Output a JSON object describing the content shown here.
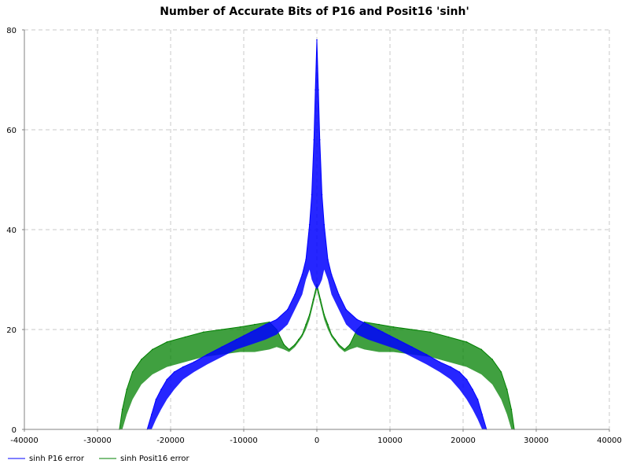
{
  "chart_data": {
    "type": "line",
    "title": "Number of Accurate Bits of P16 and Posit16 'sinh'",
    "xlabel": "",
    "ylabel": "",
    "xlim": [
      -40000,
      40000
    ],
    "ylim": [
      0,
      80
    ],
    "x_ticks": [
      -40000,
      -30000,
      -20000,
      -10000,
      0,
      10000,
      20000,
      30000,
      40000
    ],
    "y_ticks": [
      0,
      20,
      40,
      60,
      80
    ],
    "x_tick_labels": [
      "-40000",
      "-30000",
      "-20000",
      "-10000",
      "0",
      "10000",
      "20000",
      "30000",
      "40000"
    ],
    "y_tick_labels": [
      "0",
      "20",
      "40",
      "60",
      "80"
    ],
    "grid": true,
    "legend_position": "bottom-left",
    "series": [
      {
        "name": "sinh P16 error",
        "color": "#0000ff",
        "x": [
          -23200,
          -22600,
          -22000,
          -21300,
          -20500,
          -19500,
          -18300,
          -16800,
          -15000,
          -13000,
          -11000,
          -9000,
          -7000,
          -5500,
          -4000,
          -3000,
          -2000,
          -1500,
          -1000,
          -700,
          -400,
          -200,
          0,
          200,
          400,
          700,
          1000,
          1500,
          2000,
          3000,
          4000,
          5500,
          7000,
          9000,
          11000,
          13000,
          15000,
          16800,
          18300,
          19500,
          20500,
          21300,
          22000,
          22600,
          23200
        ],
        "y": [
          0,
          3,
          6,
          8,
          10,
          11.5,
          12.5,
          13.5,
          15,
          16.5,
          18,
          19.5,
          21,
          22,
          24,
          27,
          31,
          34,
          41,
          47,
          58,
          68,
          78,
          68,
          58,
          47,
          41,
          34,
          31,
          27,
          24,
          22,
          21,
          19.5,
          18,
          16.5,
          15,
          13.5,
          12.5,
          11.5,
          10,
          8,
          6,
          3,
          0
        ],
        "y_low": [
          0,
          0,
          2,
          4,
          6,
          8,
          10,
          11.5,
          13,
          14.5,
          16,
          17,
          18,
          19,
          21,
          24,
          27,
          30,
          32,
          30,
          29,
          28.5,
          28,
          28.5,
          29,
          30,
          32,
          30,
          27,
          24,
          21,
          19,
          18,
          17,
          16,
          14.5,
          13,
          11.5,
          10,
          8,
          6,
          4,
          2,
          0,
          0
        ]
      },
      {
        "name": "sinh Posit16 error",
        "color": "#008000",
        "x": [
          -27000,
          -26600,
          -26000,
          -25200,
          -24000,
          -22500,
          -20500,
          -18000,
          -15500,
          -13000,
          -10500,
          -8500,
          -6500,
          -5500,
          -4500,
          -3800,
          -3000,
          -2500,
          -2000,
          -1500,
          -1000,
          -500,
          0,
          500,
          1000,
          1500,
          2000,
          2500,
          3000,
          3800,
          4500,
          5500,
          6500,
          8500,
          10500,
          13000,
          15500,
          18000,
          20500,
          22500,
          24000,
          25200,
          26000,
          26600,
          27000
        ],
        "y": [
          0,
          4,
          8,
          11.5,
          14,
          16,
          17.5,
          18.5,
          19.5,
          20,
          20.5,
          21,
          21.5,
          20,
          17,
          16,
          17,
          18,
          19,
          21,
          23,
          26,
          29,
          26,
          23,
          21,
          19,
          18,
          17,
          16,
          17,
          20,
          21.5,
          21,
          20.5,
          20,
          19.5,
          18.5,
          17.5,
          16,
          14,
          11.5,
          8,
          4,
          0
        ],
        "y_low": [
          0,
          0,
          3,
          6,
          9,
          11,
          12.5,
          13.5,
          14.5,
          15,
          15.5,
          15.5,
          16,
          16.5,
          16,
          15.5,
          16.5,
          17.5,
          18.5,
          20,
          22,
          25,
          28,
          25,
          22,
          20,
          18.5,
          17.5,
          16.5,
          15.5,
          16,
          16.5,
          16,
          15.5,
          15.5,
          15,
          14.5,
          13.5,
          12.5,
          11,
          9,
          6,
          3,
          0,
          0
        ]
      }
    ]
  }
}
